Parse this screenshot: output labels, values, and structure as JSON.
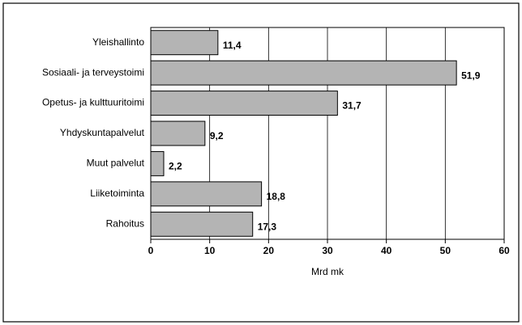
{
  "chart_data": {
    "type": "bar",
    "orientation": "horizontal",
    "categories": [
      "Yleishallinto",
      "Sosiaali- ja terveystoimi",
      "Opetus- ja kulttuuritoimi",
      "Yhdyskuntapalvelut",
      "Muut palvelut",
      "Liiketoiminta",
      "Rahoitus"
    ],
    "values": [
      11.4,
      51.9,
      31.7,
      9.2,
      2.2,
      18.8,
      17.3
    ],
    "value_labels": [
      "11,4",
      "51,9",
      "31,7",
      "9,2",
      "2,2",
      "18,8",
      "17,3"
    ],
    "color": "#b4b4b4",
    "xlabel": "Mrd mk",
    "xlim": [
      0,
      60
    ],
    "xticks": [
      0,
      10,
      20,
      30,
      40,
      50,
      60
    ],
    "grid": true
  }
}
